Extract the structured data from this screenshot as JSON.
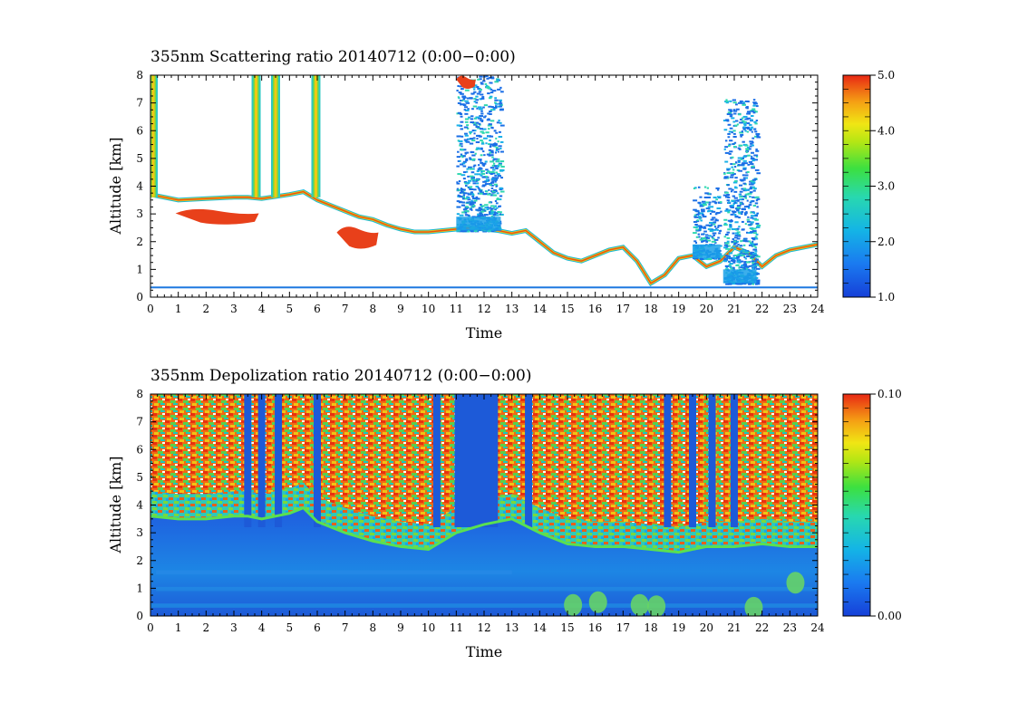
{
  "chart_data": [
    {
      "type": "heatmap",
      "title": "355nm Scattering ratio  20140712 (0:00−0:00)",
      "xlabel": "Time",
      "ylabel": "Altitude [km]",
      "xlim": [
        0,
        24
      ],
      "ylim": [
        0,
        8
      ],
      "x_ticks": [
        "0",
        "1",
        "2",
        "3",
        "4",
        "5",
        "6",
        "7",
        "8",
        "9",
        "10",
        "11",
        "12",
        "13",
        "14",
        "15",
        "16",
        "17",
        "18",
        "19",
        "20",
        "21",
        "22",
        "23",
        "24"
      ],
      "y_ticks": [
        "0",
        "1",
        "2",
        "3",
        "4",
        "5",
        "6",
        "7",
        "8"
      ],
      "colorbar": {
        "min": 1.0,
        "max": 5.0,
        "tick_labels": [
          "1.0",
          "2.0",
          "3.0",
          "4.0",
          "5.0"
        ],
        "tick_values": [
          1,
          2,
          3,
          4,
          5
        ]
      },
      "background": "white",
      "cloud_base_km": [
        [
          0,
          3.7
        ],
        [
          0.5,
          3.6
        ],
        [
          1,
          3.5
        ],
        [
          2,
          3.55
        ],
        [
          3,
          3.6
        ],
        [
          3.5,
          3.6
        ],
        [
          4,
          3.55
        ],
        [
          5,
          3.7
        ],
        [
          5.5,
          3.8
        ],
        [
          6,
          3.5
        ],
        [
          6.5,
          3.3
        ],
        [
          7,
          3.1
        ],
        [
          7.5,
          2.9
        ],
        [
          8,
          2.8
        ],
        [
          8.5,
          2.6
        ],
        [
          9,
          2.45
        ],
        [
          9.5,
          2.35
        ],
        [
          10,
          2.35
        ],
        [
          10.5,
          2.4
        ],
        [
          11,
          2.45
        ],
        [
          11.5,
          2.5
        ],
        [
          12,
          2.45
        ],
        [
          12.5,
          2.4
        ],
        [
          13,
          2.3
        ],
        [
          13.5,
          2.4
        ],
        [
          14,
          2.0
        ],
        [
          14.5,
          1.6
        ],
        [
          15,
          1.4
        ],
        [
          15.5,
          1.3
        ],
        [
          16,
          1.5
        ],
        [
          16.5,
          1.7
        ],
        [
          17,
          1.8
        ],
        [
          17.5,
          1.3
        ],
        [
          18,
          0.5
        ],
        [
          18.5,
          0.8
        ],
        [
          19,
          1.4
        ],
        [
          19.5,
          1.5
        ],
        [
          20,
          1.1
        ],
        [
          20.5,
          1.3
        ],
        [
          21,
          1.8
        ],
        [
          21.5,
          1.6
        ],
        [
          22,
          1.1
        ],
        [
          22.5,
          1.5
        ],
        [
          23,
          1.7
        ],
        [
          23.5,
          1.8
        ],
        [
          24,
          1.9
        ]
      ],
      "high_ratio_patches": [
        {
          "t": [
            0.9,
            3.9
          ],
          "z": [
            2.6,
            3.2
          ],
          "value": 5.0
        },
        {
          "t": [
            6.7,
            8.2
          ],
          "z": [
            1.7,
            2.6
          ],
          "value": 5.0
        },
        {
          "t": [
            11.0,
            11.7
          ],
          "z": [
            7.5,
            8.0
          ],
          "value": 5.0
        }
      ],
      "full_column_clouds_t": [
        0.1,
        3.8,
        4.5,
        5.95
      ],
      "aerosol_scatter": [
        {
          "t": [
            11.0,
            12.6
          ],
          "z": [
            2.4,
            8.0
          ],
          "value": 1.5
        },
        {
          "t": [
            19.5,
            20.5
          ],
          "z": [
            1.4,
            4.0
          ],
          "value": 2.0
        },
        {
          "t": [
            20.6,
            21.8
          ],
          "z": [
            0.5,
            7.2
          ],
          "value": 2.0
        }
      ],
      "surface_layer_km": 0.35
    },
    {
      "type": "heatmap",
      "title": "355nm Depolization ratio  20140712 (0:00−0:00)",
      "xlabel": "Time",
      "ylabel": "Altitude [km]",
      "xlim": [
        0,
        24
      ],
      "ylim": [
        0,
        8
      ],
      "x_ticks": [
        "0",
        "1",
        "2",
        "3",
        "4",
        "5",
        "6",
        "7",
        "8",
        "9",
        "10",
        "11",
        "12",
        "13",
        "14",
        "15",
        "16",
        "17",
        "18",
        "19",
        "20",
        "21",
        "22",
        "23",
        "24"
      ],
      "y_ticks": [
        "0",
        "1",
        "2",
        "3",
        "4",
        "5",
        "6",
        "7",
        "8"
      ],
      "colorbar": {
        "min": 0.0,
        "max": 0.1,
        "tick_labels": [
          "0.00",
          "0.10"
        ],
        "tick_values": [
          0.0,
          0.1
        ]
      },
      "boundary_layer_top_km": [
        [
          0,
          3.6
        ],
        [
          1,
          3.5
        ],
        [
          2,
          3.5
        ],
        [
          3,
          3.6
        ],
        [
          3.5,
          3.6
        ],
        [
          4,
          3.5
        ],
        [
          5,
          3.7
        ],
        [
          5.5,
          3.9
        ],
        [
          6,
          3.4
        ],
        [
          7,
          3.0
        ],
        [
          8,
          2.7
        ],
        [
          9,
          2.5
        ],
        [
          10,
          2.4
        ],
        [
          11,
          3.0
        ],
        [
          12,
          3.3
        ],
        [
          13,
          3.5
        ],
        [
          14,
          3.0
        ],
        [
          15,
          2.6
        ],
        [
          16,
          2.5
        ],
        [
          17,
          2.5
        ],
        [
          18,
          2.4
        ],
        [
          19,
          2.3
        ],
        [
          20,
          2.5
        ],
        [
          21,
          2.5
        ],
        [
          22,
          2.6
        ],
        [
          23,
          2.5
        ],
        [
          24,
          2.5
        ]
      ],
      "low_depol_columns_t": [
        3.5,
        4.0,
        4.6,
        6.0,
        10.3,
        11.2,
        11.6,
        12.1,
        13.6,
        18.6,
        19.5,
        20.2,
        21.0
      ]
    }
  ]
}
